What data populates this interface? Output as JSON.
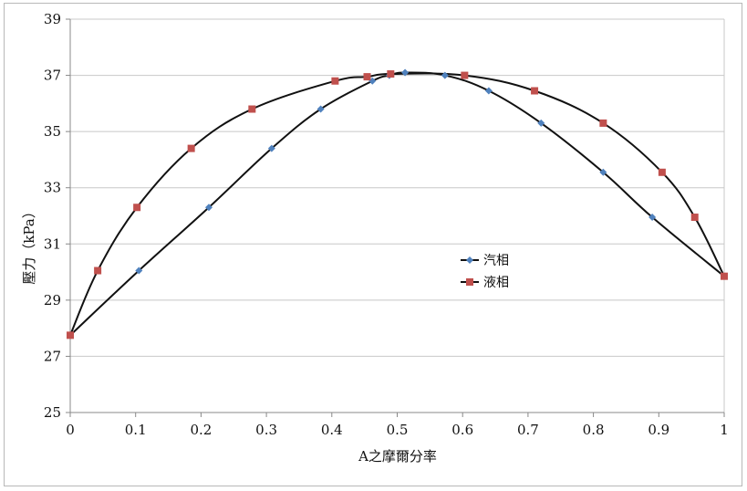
{
  "chart_data": {
    "type": "line",
    "title": "",
    "xlabel": "A之摩爾分率",
    "ylabel": "壓力（kPa）",
    "xlim": [
      0,
      1
    ],
    "ylim": [
      25,
      39
    ],
    "x_ticks": [
      "0",
      "0.1",
      "0.2",
      "0.3",
      "0.4",
      "0.5",
      "0.6",
      "0.7",
      "0.8",
      "0.9",
      "1"
    ],
    "y_ticks": [
      "25",
      "27",
      "29",
      "31",
      "33",
      "35",
      "37",
      "39"
    ],
    "grid": "horizontal",
    "legend_position": "center-right",
    "series": [
      {
        "name": "汽相",
        "color": "#4f81bd",
        "line_color": "#111111",
        "marker": "diamond",
        "x": [
          0,
          0.105,
          0.212,
          0.308,
          0.383,
          0.462,
          0.488,
          0.512,
          0.573,
          0.64,
          0.72,
          0.815,
          0.89,
          1.0
        ],
        "y": [
          27.75,
          30.05,
          32.3,
          34.4,
          35.8,
          36.8,
          37.0,
          37.1,
          37.0,
          36.45,
          35.3,
          33.55,
          31.95,
          29.85
        ]
      },
      {
        "name": "液相",
        "color": "#c0504d",
        "line_color": "#111111",
        "marker": "square",
        "x": [
          0,
          0.042,
          0.102,
          0.185,
          0.278,
          0.405,
          0.454,
          0.49,
          0.603,
          0.71,
          0.815,
          0.905,
          0.955,
          1.0
        ],
        "y": [
          27.75,
          30.05,
          32.3,
          34.4,
          35.8,
          36.8,
          36.95,
          37.05,
          37.0,
          36.45,
          35.3,
          33.55,
          31.95,
          29.85
        ]
      }
    ]
  }
}
